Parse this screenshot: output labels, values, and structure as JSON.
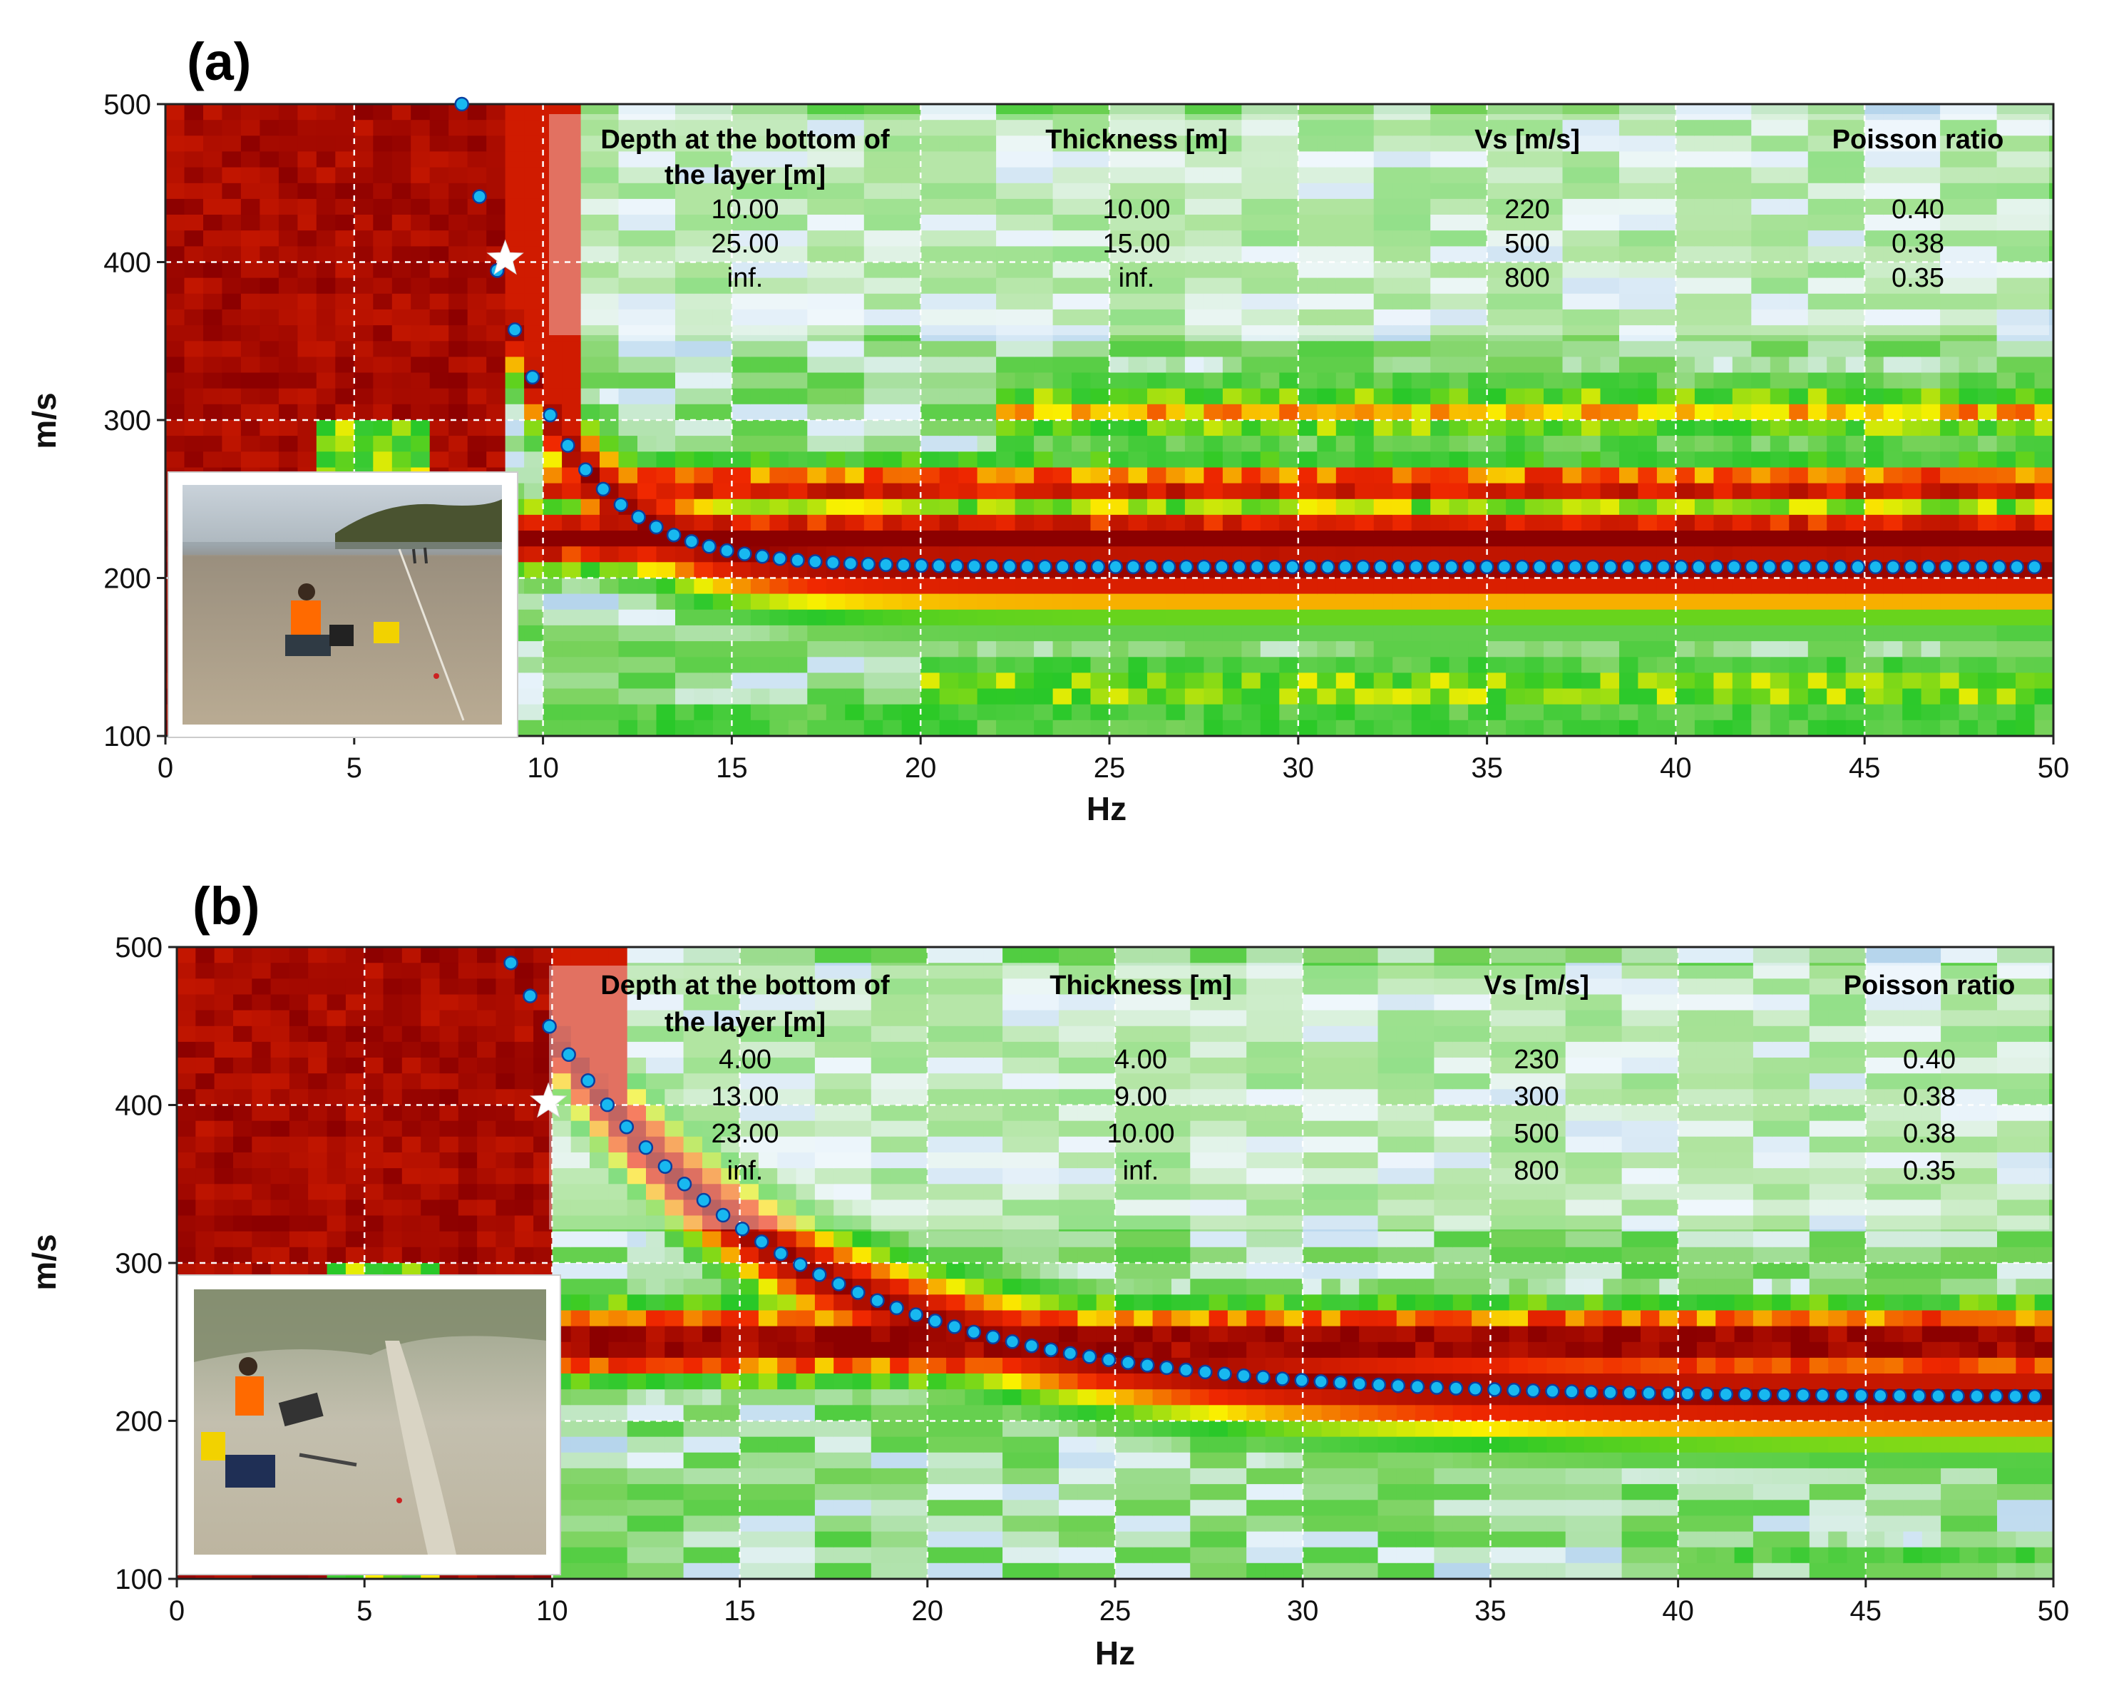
{
  "chart_data": [
    {
      "type": "heatmap",
      "panel_label": "(a)",
      "xlabel": "Hz",
      "ylabel": "m/s",
      "xlim": [
        0,
        50
      ],
      "ylim": [
        100,
        500
      ],
      "x_ticks": [
        "0",
        "5",
        "10",
        "15",
        "20",
        "25",
        "30",
        "35",
        "40",
        "45",
        "50"
      ],
      "y_ticks": [
        "100",
        "200",
        "300",
        "400",
        "500"
      ],
      "table": {
        "headers": [
          "Depth at the bottom of the layer [m]",
          "Thickness [m]",
          "Vs [m/s]",
          "Poisson ratio"
        ],
        "rows": [
          [
            "10.00",
            "10.00",
            "220",
            "0.40"
          ],
          [
            "25.00",
            "15.00",
            "500",
            "0.38"
          ],
          [
            "inf.",
            "inf.",
            "800",
            "0.35"
          ]
        ]
      },
      "star": {
        "x": 9.0,
        "y": 402
      },
      "photo": "photo-beach-survey",
      "curve": {
        "x0": 7.85,
        "x1": 49.5,
        "vinf": 207,
        "v0": 500,
        "tau": 2.1,
        "n": 90
      },
      "bands": [
        {
          "c": 225,
          "w": 20,
          "a": 1.0,
          "from": 8
        },
        {
          "c": 258,
          "w": 16,
          "a": 0.85,
          "from": 10
        },
        {
          "c": 305,
          "w": 22,
          "a": 0.6,
          "from": 22
        },
        {
          "c": 130,
          "w": 20,
          "a": 0.55,
          "from": 20
        },
        {
          "c": 110,
          "w": 12,
          "a": 0.45,
          "from": 12
        }
      ],
      "lowband": {
        "to": 9.2,
        "from": 0
      }
    },
    {
      "type": "heatmap",
      "panel_label": "(b)",
      "xlabel": "Hz",
      "ylabel": "m/s",
      "xlim": [
        0,
        50
      ],
      "ylim": [
        100,
        500
      ],
      "x_ticks": [
        "0",
        "5",
        "10",
        "15",
        "20",
        "25",
        "30",
        "35",
        "40",
        "45",
        "50"
      ],
      "y_ticks": [
        "100",
        "200",
        "300",
        "400",
        "500"
      ],
      "table": {
        "headers": [
          "Depth at the bottom of the layer [m]",
          "Thickness [m]",
          "Vs [m/s]",
          "Poisson ratio"
        ],
        "rows": [
          [
            "4.00",
            "4.00",
            "230",
            "0.40"
          ],
          [
            "13.00",
            "9.00",
            "300",
            "0.38"
          ],
          [
            "23.00",
            "10.00",
            "500",
            "0.38"
          ],
          [
            "inf.",
            "inf.",
            "800",
            "0.35"
          ]
        ]
      },
      "star": {
        "x": 9.9,
        "y": 402
      },
      "photo": "photo-dune-survey",
      "curve": {
        "x0": 8.9,
        "x1": 49.5,
        "vinf": 215,
        "v0": 490,
        "tau": 6.5,
        "n": 80
      },
      "bands": [
        {
          "c": 250,
          "w": 22,
          "a": 1.0,
          "from": 10
        },
        {
          "c": 210,
          "w": 10,
          "a": 0.5,
          "from": 30
        },
        {
          "c": 115,
          "w": 10,
          "a": 0.35,
          "from": 40
        }
      ],
      "lowband": {
        "to": 10.0,
        "from": 0
      }
    }
  ],
  "colors": {
    "darkred": "#8b0000",
    "red": "#e00000",
    "yellow": "#ffff00",
    "green": "#33cc33",
    "blue": "#1e6eb4",
    "white": "#ffffff",
    "point": "#18b8f0",
    "point_stroke": "#0a3fa0"
  }
}
